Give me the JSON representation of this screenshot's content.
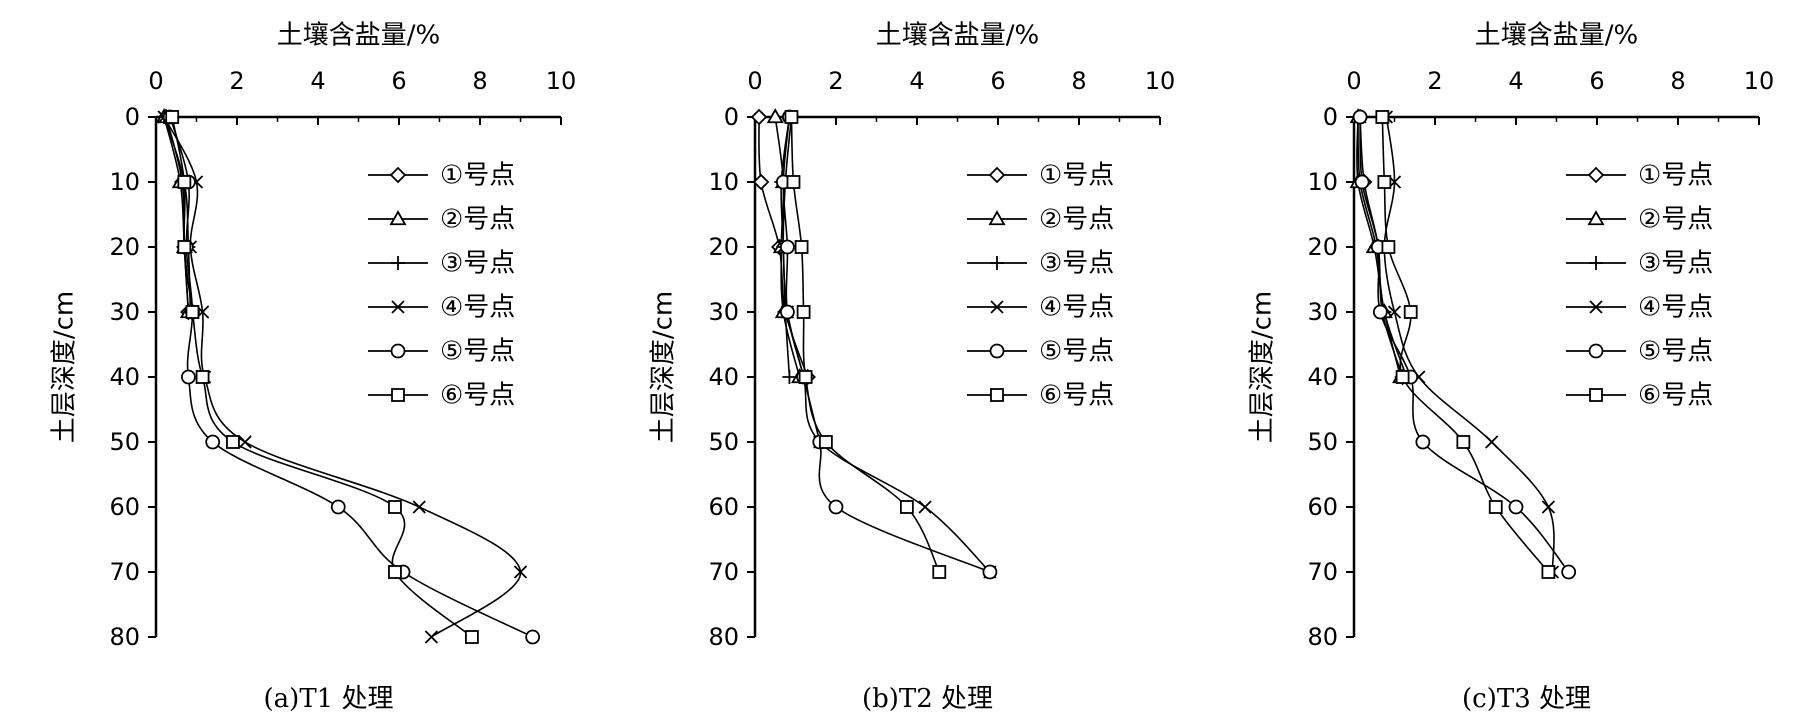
{
  "chart_data": [
    {
      "type": "line",
      "caption": "(a)T1 处理",
      "xlabel": "土壤含盐量/%",
      "ylabel": "土层深度/cm",
      "xlim": [
        0,
        10
      ],
      "ylim": [
        0,
        80
      ],
      "x_ticks": [
        "0",
        "2",
        "4",
        "6",
        "8",
        "10"
      ],
      "y_ticks": [
        "0",
        "10",
        "20",
        "30",
        "40",
        "50",
        "60",
        "70",
        "80"
      ],
      "x_axis_position": "top",
      "y_axis_inverted": true,
      "grid": false,
      "legend_position": "top-right",
      "series": [
        {
          "name": "①号点",
          "marker": "diamond",
          "x": [
            0.25,
            0.65,
            0.7,
            0.8
          ],
          "y": [
            0,
            10,
            20,
            30
          ]
        },
        {
          "name": "②号点",
          "marker": "triangle",
          "x": [
            0.2,
            0.6,
            0.7,
            0.8
          ],
          "y": [
            0,
            10,
            20,
            30
          ]
        },
        {
          "name": "③号点",
          "marker": "plus",
          "x": [
            0.2,
            0.7,
            0.8,
            0.85
          ],
          "y": [
            0,
            10,
            20,
            30
          ]
        },
        {
          "name": "④号点",
          "marker": "x",
          "x": [
            0.2,
            1.0,
            0.85,
            1.15,
            1.2,
            2.2,
            6.5,
            9.0,
            6.8
          ],
          "y": [
            0,
            10,
            20,
            30,
            40,
            50,
            60,
            70,
            80
          ]
        },
        {
          "name": "⑤号点",
          "marker": "circle",
          "x": [
            0.35,
            0.8,
            0.75,
            0.9,
            0.8,
            1.4,
            4.5,
            6.1,
            9.3
          ],
          "y": [
            0,
            10,
            20,
            30,
            40,
            50,
            60,
            70,
            80
          ]
        },
        {
          "name": "⑥号点",
          "marker": "square",
          "x": [
            0.4,
            0.7,
            0.7,
            0.9,
            1.15,
            1.9,
            5.9,
            5.9,
            7.8
          ],
          "y": [
            0,
            10,
            20,
            30,
            40,
            50,
            60,
            70,
            80
          ]
        }
      ]
    },
    {
      "type": "line",
      "caption": "(b)T2 处理",
      "xlabel": "土壤含盐量/%",
      "ylabel": "土层深度/cm",
      "xlim": [
        0,
        10
      ],
      "ylim": [
        0,
        80
      ],
      "x_ticks": [
        "0",
        "2",
        "4",
        "6",
        "8",
        "10"
      ],
      "y_ticks": [
        "0",
        "10",
        "20",
        "30",
        "40",
        "50",
        "60",
        "70",
        "80"
      ],
      "x_axis_position": "top",
      "y_axis_inverted": true,
      "grid": false,
      "legend_position": "top-right",
      "series": [
        {
          "name": "①号点",
          "marker": "diamond",
          "x": [
            0.1,
            0.15,
            0.6,
            0.75,
            1.3
          ],
          "y": [
            0,
            10,
            20,
            30,
            40
          ]
        },
        {
          "name": "②号点",
          "marker": "triangle",
          "x": [
            0.5,
            0.7,
            0.65,
            0.7,
            1.1
          ],
          "y": [
            0,
            10,
            20,
            30,
            40
          ]
        },
        {
          "name": "③号点",
          "marker": "plus",
          "x": [
            0.85,
            0.65,
            0.7,
            0.75,
            0.85
          ],
          "y": [
            0,
            10,
            20,
            30,
            40
          ]
        },
        {
          "name": "④号点",
          "marker": "x",
          "x": [
            0.9,
            0.75,
            0.7,
            0.8,
            1.2,
            1.6,
            4.2,
            5.8
          ],
          "y": [
            0,
            10,
            20,
            30,
            40,
            50,
            60,
            70
          ]
        },
        {
          "name": "⑤号点",
          "marker": "circle",
          "x": [
            0.85,
            0.7,
            0.8,
            0.8,
            1.2,
            1.6,
            2.0,
            5.8
          ],
          "y": [
            0,
            10,
            20,
            30,
            40,
            50,
            60,
            70
          ]
        },
        {
          "name": "⑥号点",
          "marker": "square",
          "x": [
            0.9,
            0.95,
            1.15,
            1.2,
            1.25,
            1.75,
            3.75,
            4.55
          ],
          "y": [
            0,
            10,
            20,
            30,
            40,
            50,
            60,
            70
          ]
        }
      ]
    },
    {
      "type": "line",
      "caption": "(c)T3 处理",
      "xlabel": "土壤含盐量/%",
      "ylabel": "土层深度/cm",
      "xlim": [
        0,
        10
      ],
      "ylim": [
        0,
        80
      ],
      "x_ticks": [
        "0",
        "2",
        "4",
        "6",
        "8",
        "10"
      ],
      "y_ticks": [
        "0",
        "10",
        "20",
        "30",
        "40",
        "50",
        "60",
        "70",
        "80"
      ],
      "x_axis_position": "top",
      "y_axis_inverted": true,
      "grid": false,
      "legend_position": "top-right",
      "series": [
        {
          "name": "①号点",
          "marker": "diamond",
          "x": [
            0.15,
            0.25,
            0.6,
            0.7,
            1.2
          ],
          "y": [
            0,
            10,
            20,
            30,
            40
          ]
        },
        {
          "name": "②号点",
          "marker": "triangle",
          "x": [
            0.1,
            0.1,
            0.5,
            0.75,
            1.15
          ],
          "y": [
            0,
            10,
            20,
            30,
            40
          ]
        },
        {
          "name": "③号点",
          "marker": "plus",
          "x": [
            0.1,
            0.15,
            0.55,
            0.75,
            1.3
          ],
          "y": [
            0,
            10,
            20,
            30,
            40
          ]
        },
        {
          "name": "④号点",
          "marker": "x",
          "x": [
            0.8,
            1.0,
            0.75,
            1.0,
            1.6,
            3.4,
            4.8,
            4.9
          ],
          "y": [
            0,
            10,
            20,
            30,
            40,
            50,
            60,
            70
          ]
        },
        {
          "name": "⑤号点",
          "marker": "circle",
          "x": [
            0.15,
            0.2,
            0.6,
            0.65,
            1.4,
            1.7,
            4.0,
            5.3
          ],
          "y": [
            0,
            10,
            20,
            30,
            40,
            50,
            60,
            70
          ]
        },
        {
          "name": "⑥号点",
          "marker": "square",
          "x": [
            0.7,
            0.75,
            0.85,
            1.4,
            1.2,
            2.7,
            3.5,
            4.8
          ],
          "y": [
            0,
            10,
            20,
            30,
            40,
            50,
            60,
            70
          ]
        }
      ]
    }
  ]
}
